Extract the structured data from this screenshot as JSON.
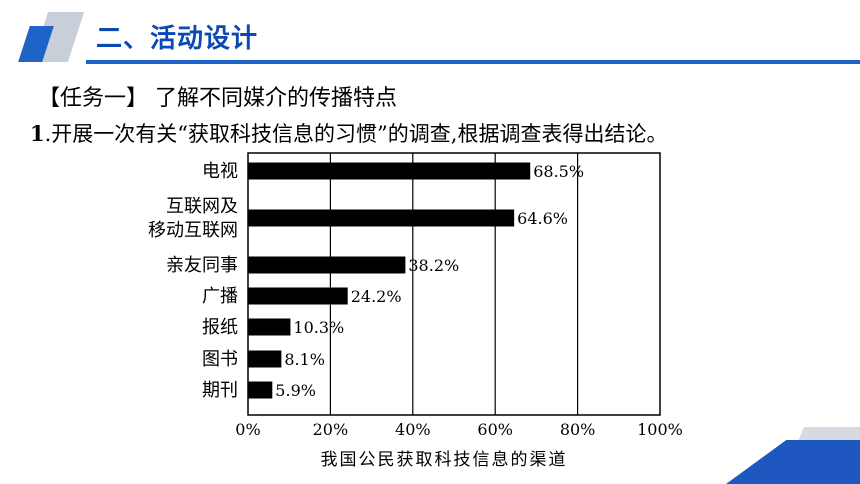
{
  "header": {
    "title": "二、活动设计"
  },
  "task": {
    "label": "【任务一】 了解不同媒介的传播特点"
  },
  "question": {
    "number": "1",
    "text": ".开展一次有关“获取科技信息的习惯”的调查,根据调查表得出结论。"
  },
  "chart_data": {
    "type": "bar",
    "orientation": "horizontal",
    "categories": [
      "电视",
      "互联网及\n移动互联网",
      "亲友同事",
      "广播",
      "报纸",
      "图书",
      "期刊"
    ],
    "values": [
      68.5,
      64.6,
      38.2,
      24.2,
      10.3,
      8.1,
      5.9
    ],
    "value_labels": [
      "68.5%",
      "64.6%",
      "38.2%",
      "24.2%",
      "10.3%",
      "8.1%",
      "5.9%"
    ],
    "xticks": [
      "0%",
      "20%",
      "40%",
      "60%",
      "80%",
      "100%"
    ],
    "xlim": [
      0,
      100
    ],
    "xlabel": "我国公民获取科技信息的渠道",
    "grid": "vertical",
    "bar_color": "#000000"
  }
}
